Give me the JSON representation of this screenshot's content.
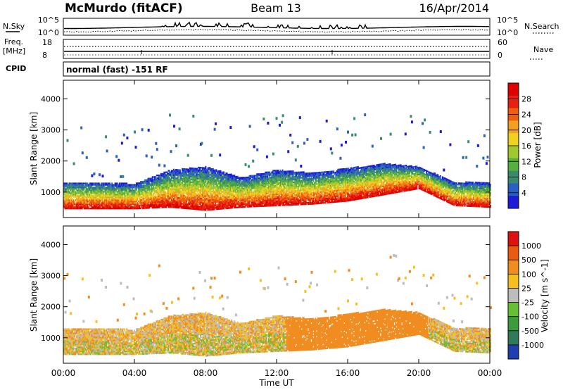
{
  "header": {
    "station": "McMurdo (fitACF)",
    "beam": "Beam 13",
    "date": "16/Apr/2014"
  },
  "noise_panel": {
    "left_label": "N.Sky",
    "left_ticks": [
      "10^5",
      "10^0"
    ],
    "right_label": "N.Search",
    "right_ticks": [
      "10^5",
      "10^0"
    ]
  },
  "freq_panel": {
    "left_label_1": "Freq.",
    "left_label_2": "[MHz]",
    "left_ticks": [
      "18",
      "8"
    ],
    "right_label": "Nave",
    "right_ticks": [
      "60",
      "0"
    ]
  },
  "cpid": {
    "label": "CPID",
    "value": "normal (fast) -151 RF"
  },
  "chart_data": [
    {
      "type": "heatmap",
      "panel": "power",
      "xlabel": "Time UT",
      "ylabel": "Slant Range [km]",
      "colorbar_label": "Power [dB]",
      "xlim": [
        0,
        24
      ],
      "ylim": [
        180,
        4600
      ],
      "x_ticks": [
        "00:00",
        "04:00",
        "08:00",
        "12:00",
        "16:00",
        "20:00",
        "00:00"
      ],
      "y_ticks": [
        "1000",
        "2000",
        "3000",
        "4000"
      ],
      "colorbar_ticks": [
        "28",
        "24",
        "20",
        "16",
        "12",
        "8",
        "4"
      ],
      "colorbar_colors": [
        "#1c1cd6",
        "#2a5fc4",
        "#3a8a6e",
        "#55b040",
        "#a0c830",
        "#f0d020",
        "#f4a020",
        "#ee6010",
        "#e82010",
        "#e00000"
      ],
      "series": [
        {
          "name": "",
          "time_h": [
            0,
            2,
            4,
            6,
            8,
            10,
            12,
            14,
            16,
            18,
            20,
            22,
            24
          ],
          "range_km_low": [
            450,
            450,
            450,
            500,
            400,
            500,
            550,
            600,
            700,
            900,
            1100,
            550,
            500
          ],
          "range_km_high": [
            1300,
            1300,
            1250,
            1700,
            1800,
            1450,
            1700,
            1600,
            1750,
            1900,
            1800,
            1300,
            1300
          ]
        }
      ]
    },
    {
      "type": "heatmap",
      "panel": "velocity",
      "xlabel": "Time UT",
      "ylabel": "Slant Range [km]",
      "colorbar_label": "Velocity [m s^-1]",
      "xlim": [
        0,
        24
      ],
      "ylim": [
        180,
        4600
      ],
      "x_ticks": [
        "00:00",
        "04:00",
        "08:00",
        "12:00",
        "16:00",
        "20:00",
        "00:00"
      ],
      "y_ticks": [
        "1000",
        "2000",
        "3000",
        "4000"
      ],
      "colorbar_ticks": [
        "1000",
        "500",
        "100",
        "25",
        "-25",
        "-100",
        "-500",
        "-1000"
      ],
      "colorbar_colors": [
        "#1f3fb0",
        "#2e7a5a",
        "#3c9c3c",
        "#66c033",
        "#bdbdbd",
        "#f4c020",
        "#f08c20",
        "#ec5a10",
        "#e01010"
      ],
      "series": [
        {
          "name": "",
          "time_h": [
            0,
            2,
            4,
            6,
            8,
            10,
            12,
            14,
            16,
            18,
            20,
            22,
            24
          ],
          "range_km_low": [
            450,
            450,
            450,
            500,
            400,
            500,
            550,
            600,
            700,
            900,
            1100,
            550,
            500
          ],
          "range_km_high": [
            1300,
            1300,
            1250,
            1700,
            1800,
            1450,
            1700,
            1600,
            1750,
            1900,
            1800,
            1300,
            1300
          ]
        }
      ]
    }
  ]
}
